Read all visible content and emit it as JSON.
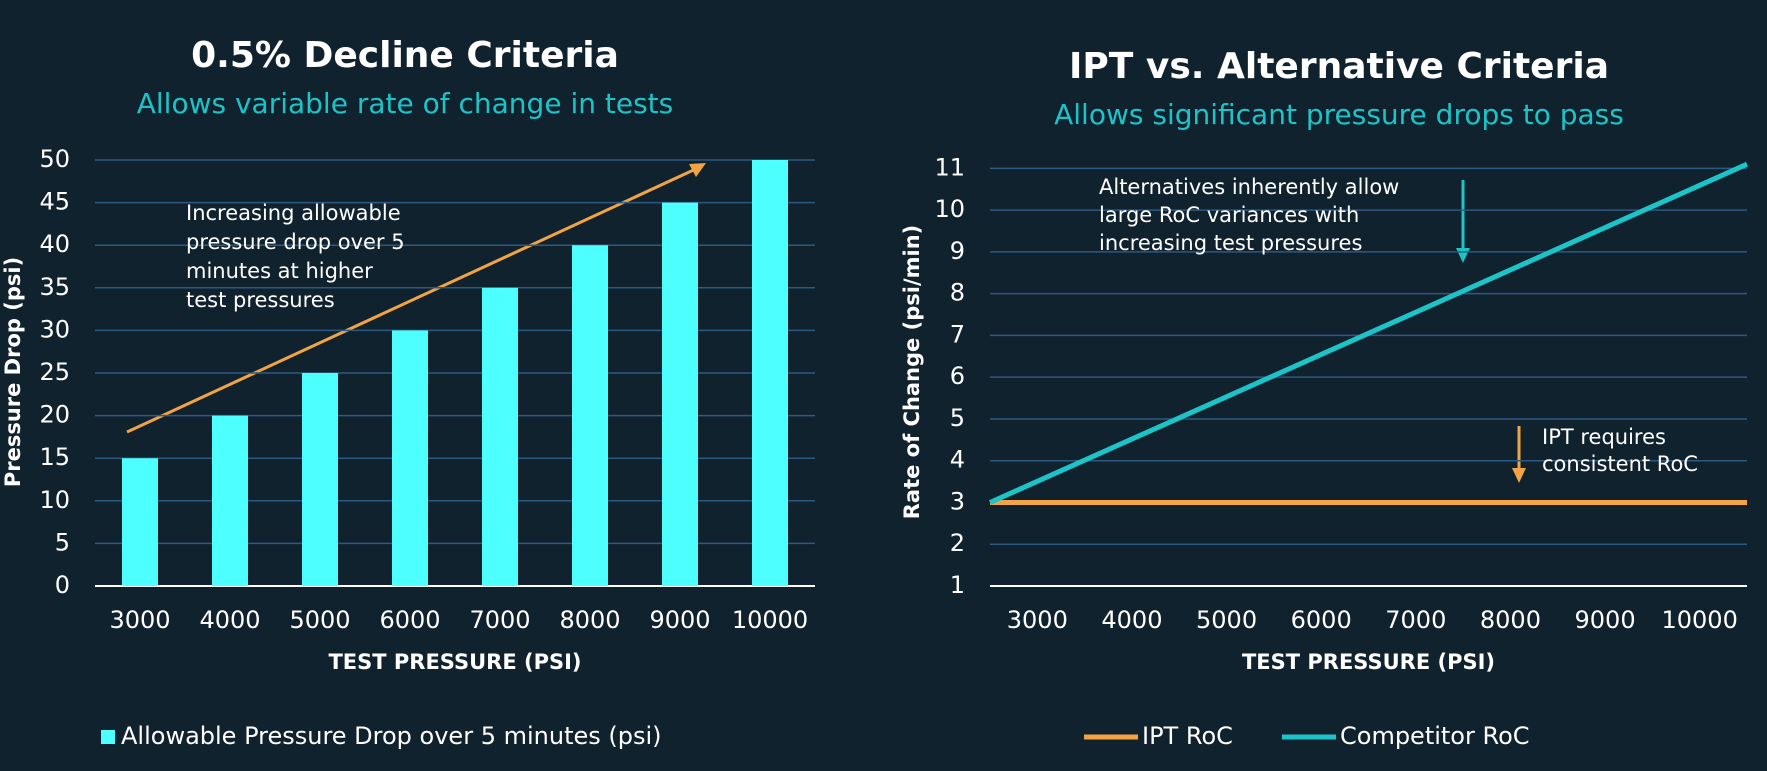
{
  "chart_data": [
    {
      "type": "bar",
      "title": "0.5% Decline Criteria",
      "subtitle": "Allows variable rate of change in tests",
      "xlabel": "TEST PRESSURE (PSI)",
      "ylabel": "Pressure Drop (psi)",
      "categories": [
        "3000",
        "4000",
        "5000",
        "6000",
        "7000",
        "8000",
        "9000",
        "10000"
      ],
      "series": [
        {
          "name": "Allowable Pressure Drop over 5 minutes (psi)",
          "color": "#4dffff",
          "values": [
            15,
            20,
            25,
            30,
            35,
            40,
            45,
            50
          ]
        }
      ],
      "ylim": [
        0,
        50
      ],
      "yticks": [
        0,
        5,
        10,
        15,
        20,
        25,
        30,
        35,
        40,
        45,
        50
      ],
      "grid": true,
      "annotation": [
        "Increasing allowable",
        "pressure drop over 5",
        "minutes at higher",
        "test pressures"
      ]
    },
    {
      "type": "line",
      "title": "IPT vs. Alternative Criteria",
      "subtitle": "Allows significant pressure drops to pass",
      "xlabel": "TEST PRESSURE (PSI)",
      "ylabel": "Rate of Change (psi/min)",
      "x": [
        2500,
        10500
      ],
      "series": [
        {
          "name": "IPT RoC",
          "color": "#f2a444",
          "values": [
            3,
            3
          ]
        },
        {
          "name": "Competitor RoC",
          "color": "#1cc4c8",
          "values": [
            3,
            11.1
          ]
        }
      ],
      "xlim": [
        2500,
        10500
      ],
      "xticks": [
        3000,
        4000,
        5000,
        6000,
        7000,
        8000,
        9000,
        10000
      ],
      "ylim": [
        1,
        11.2
      ],
      "yticks": [
        1,
        2,
        3,
        4,
        5,
        6,
        7,
        8,
        9,
        10,
        11
      ],
      "grid": true,
      "annotation": [
        "Alternatives inherently allow",
        "large RoC variances with",
        "increasing test pressures"
      ],
      "annotation2": [
        "IPT requires",
        "consistent RoC"
      ]
    }
  ]
}
